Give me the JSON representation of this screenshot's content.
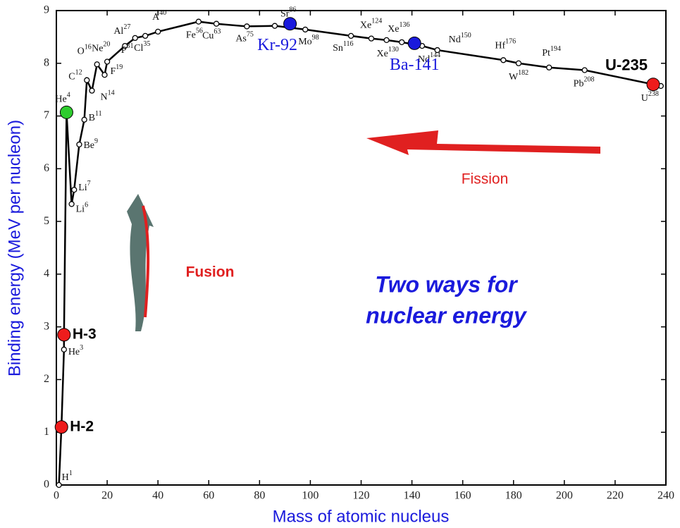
{
  "chart_data": {
    "type": "line",
    "xlabel": "Mass of atomic nucleus",
    "ylabel": "Binding energy (MeV per nucleon)",
    "xlim": [
      0,
      240
    ],
    "ylim": [
      0,
      9
    ],
    "xticks": [
      0,
      20,
      40,
      60,
      80,
      100,
      120,
      140,
      160,
      180,
      200,
      220,
      240
    ],
    "yticks": [
      0,
      1,
      2,
      3,
      4,
      5,
      6,
      7,
      8,
      9
    ],
    "color": "#000000",
    "x": [
      1,
      2,
      3,
      3,
      4,
      6,
      7,
      9,
      11,
      12,
      14,
      16,
      19,
      20,
      27,
      31,
      35,
      40,
      56,
      63,
      75,
      86,
      98,
      116,
      124,
      130,
      136,
      144,
      150,
      176,
      182,
      194,
      208,
      238
    ],
    "values": [
      0,
      1.1,
      2.57,
      2.83,
      7.07,
      5.33,
      5.6,
      6.46,
      6.93,
      7.68,
      7.48,
      7.98,
      7.78,
      8.03,
      8.33,
      8.48,
      8.52,
      8.6,
      8.79,
      8.75,
      8.7,
      8.71,
      8.64,
      8.52,
      8.47,
      8.44,
      8.4,
      8.33,
      8.25,
      8.06,
      8.0,
      7.92,
      7.87,
      7.57
    ],
    "point_labels": [
      "H",
      null,
      "He",
      null,
      "He",
      "Li",
      "Li",
      "Be",
      "B",
      "C",
      "N",
      "O",
      "F",
      "Ne",
      "Al",
      "P",
      "Cl",
      "A",
      "Fe",
      "Cu",
      "As",
      "Sr",
      "Mo",
      "Sn",
      "Xe",
      "Xe",
      "Xe",
      "Nd",
      "Nd",
      "Hf",
      "W",
      "Pt",
      "Pb",
      "U"
    ],
    "highlights": [
      {
        "label": "H-2",
        "x": 2,
        "y": 1.1,
        "color": "#ee1c1c"
      },
      {
        "label": "H-3",
        "x": 3,
        "y": 2.85,
        "color": "#ee1c1c"
      },
      {
        "x": 4,
        "y": 7.07,
        "color": "#2ecc2e"
      },
      {
        "label": "Kr-92",
        "x": 92,
        "y": 8.75,
        "color": "#1a1adc"
      },
      {
        "label": "Ba-141",
        "x": 141,
        "y": 8.38,
        "color": "#1a1adc"
      },
      {
        "label": "U-235",
        "x": 235,
        "y": 7.6,
        "color": "#ee1c1c"
      }
    ],
    "annotations": {
      "fusion": "Fusion",
      "fission": "Fission",
      "headline": [
        "Two ways for",
        "nuclear energy"
      ]
    }
  }
}
